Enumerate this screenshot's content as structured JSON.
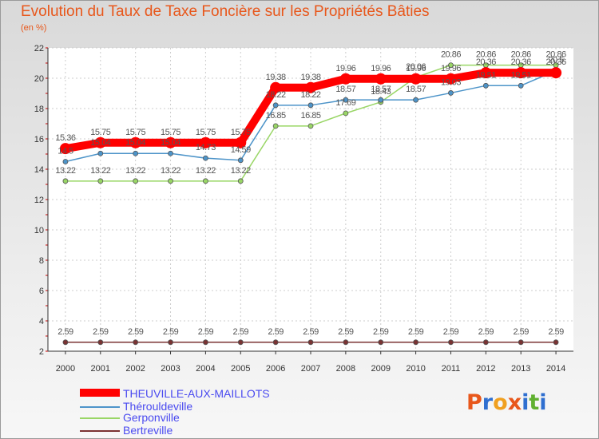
{
  "title": "Evolution du Taux de Taxe Foncière sur les Propriétés Bâties",
  "unit_label": "(en %)",
  "logo": {
    "letters": [
      "P",
      "r",
      "o",
      "x",
      "i",
      "t",
      "i"
    ],
    "colors": [
      "#e8571b",
      "#2f6fd0",
      "#f0a020",
      "#e8571b",
      "#2f6fd0",
      "#60b030",
      "#2f6fd0"
    ]
  },
  "chart_data": {
    "type": "line",
    "x": [
      "2000",
      "2001",
      "2002",
      "2003",
      "2004",
      "2005",
      "2006",
      "2007",
      "2008",
      "2009",
      "2010",
      "2011",
      "2012",
      "2013",
      "2014"
    ],
    "ylim": [
      2,
      22
    ],
    "yticks": [
      "2",
      "4",
      "6",
      "8",
      "10",
      "12",
      "14",
      "16",
      "18",
      "20",
      "22"
    ],
    "grid": true,
    "series": [
      {
        "name": "THEUVILLE-AUX-MAILLOTS",
        "color": "#ff0000",
        "values": [
          15.36,
          15.75,
          15.75,
          15.75,
          15.75,
          15.75,
          19.38,
          19.38,
          19.96,
          19.96,
          19.96,
          19.96,
          20.36,
          20.36,
          20.36
        ],
        "labels": [
          "15.36",
          "15.75",
          "15.75",
          "15.75",
          "15.75",
          "15.75",
          "19.38",
          "19.38",
          "19.96",
          "19.96",
          "19.96",
          "19.96",
          "20.36",
          "20.36",
          "20.36"
        ]
      },
      {
        "name": "Thérouldeville",
        "color": "#4d94c9",
        "values": [
          14.5,
          15.04,
          15.04,
          15.04,
          14.73,
          14.59,
          18.22,
          18.22,
          18.57,
          18.57,
          18.57,
          19.03,
          19.51,
          19.51,
          20.5
        ],
        "labels": [
          "14.5",
          "15.04",
          "15.04",
          "15.04",
          "14.73",
          "14.59",
          "18.22",
          "18.22",
          "18.57",
          "18.57",
          "18.57",
          "19.03",
          "19.51",
          "19.51",
          "20.5"
        ]
      },
      {
        "name": "Gerponville",
        "color": "#99d666",
        "values": [
          13.22,
          13.22,
          13.22,
          13.22,
          13.22,
          13.22,
          16.85,
          16.85,
          17.69,
          18.43,
          20.06,
          20.86,
          20.86,
          20.86,
          20.86
        ],
        "labels": [
          "13.22",
          "13.22",
          "13.22",
          "13.22",
          "13.22",
          "13.22",
          "16.85",
          "16.85",
          "17.69",
          "18.43",
          "20.06",
          "20.86",
          "20.86",
          "20.86",
          "20.86"
        ]
      },
      {
        "name": "Bertreville",
        "color": "#7a3333",
        "values": [
          2.59,
          2.59,
          2.59,
          2.59,
          2.59,
          2.59,
          2.59,
          2.59,
          2.59,
          2.59,
          2.59,
          2.59,
          2.59,
          2.59,
          2.59
        ],
        "labels": [
          "2.59",
          "2.59",
          "2.59",
          "2.59",
          "2.59",
          "2.59",
          "2.59",
          "2.59",
          "2.59",
          "2.59",
          "2.59",
          "2.59",
          "2.59",
          "2.59",
          "2.59"
        ]
      }
    ]
  }
}
